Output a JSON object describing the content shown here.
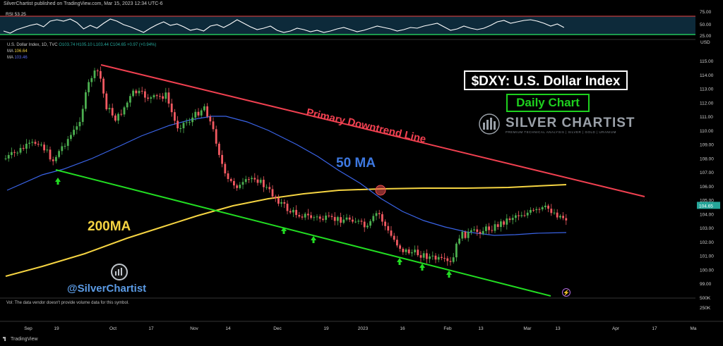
{
  "header": {
    "published_line": "SilverChartist published on TradingView.com, Mar 15, 2023 12:34 UTC-6"
  },
  "rsi": {
    "label": "RSI",
    "value": "53.25",
    "ticks": [
      "75.00",
      "50.00",
      "25.00"
    ],
    "line_color": "#ef4444",
    "baseline_color": "#22c55e"
  },
  "legend": {
    "symbol_line": "U.S. Dollar Index, 1D, TVC",
    "ohlc": "O103.74  H105.10  L103.44  C104.65  +0.97 (+0.94%)",
    "ma1_label": "MA",
    "ma1_value": "106.64",
    "ma2_label": "MA",
    "ma2_value": "103.46"
  },
  "volume_note": "Vol: The data vendor doesn't provide volume data for this symbol.",
  "volume_ticks": [
    "500K",
    "250K"
  ],
  "currency": "USD",
  "price_axis": [
    "115.00",
    "114.00",
    "113.00",
    "112.00",
    "111.00",
    "110.00",
    "109.00",
    "108.00",
    "107.00",
    "106.00",
    "105.00",
    "104.00",
    "103.00",
    "102.00",
    "101.00",
    "100.00",
    "99.00"
  ],
  "last_price": "104.65",
  "date_axis": [
    "Sep",
    "19",
    "Oct",
    "17",
    "Nov",
    "14",
    "Dec",
    "19",
    "2023",
    "16",
    "Feb",
    "13",
    "Mar",
    "13",
    "Apr",
    "17",
    "Ma"
  ],
  "title": "$DXY: U.S. Dollar Index",
  "subtitle": "Daily Chart",
  "logo": {
    "brand": "SILVER CHARTIST",
    "tagline": "PREMIUM TECHNICAL ANALYSIS | SILVER | GOLD | URANIUM"
  },
  "handle": "@SilverChartist",
  "annotations": {
    "downtrend": "Primary Downtrend Line",
    "ma50": "50 MA",
    "ma200": "200MA"
  },
  "footer": "TradingView",
  "colors": {
    "up": "#26a69a",
    "down": "#ef5350",
    "candle_up": "#4caf50",
    "candle_down": "#f25961",
    "ma50": "#3a64e8",
    "ma200": "#f5d442",
    "downtrend": "#f04050",
    "support": "#22dd22",
    "arrow": "#22dd22"
  },
  "chart_data": {
    "type": "line",
    "title": "$DXY: U.S. Dollar Index",
    "xlabel": "",
    "ylabel": "USD",
    "ylim": [
      99.3,
      115.8
    ],
    "x": [
      "Sep 1",
      "Sep 19",
      "Oct 3",
      "Oct 17",
      "Nov 1",
      "Nov 14",
      "Dec 1",
      "Dec 19",
      "Jan 3",
      "Jan 16",
      "Feb 1",
      "Feb 13",
      "Mar 1",
      "Mar 15"
    ],
    "series": [
      {
        "name": "MA",
        "values": [
          104.3,
          105.8,
          107.0,
          108.1,
          108.9,
          109.1,
          108.6,
          108.1,
          107.5,
          106.8,
          106.4,
          106.5,
          106.62,
          106.64
        ]
      },
      {
        "name": "MA",
        "values": [
          108.3,
          109.3,
          110.4,
          110.9,
          111.5,
          111.6,
          109.6,
          107.2,
          105.8,
          104.2,
          103.6,
          103.5,
          103.45,
          103.46
        ]
      },
      {
        "name": "U.S. Dollar Index",
        "values": [
          108.4,
          109.7,
          111.8,
          112.3,
          111.2,
          106.9,
          105.1,
          104.0,
          104.2,
          102.2,
          101.2,
          103.4,
          104.7,
          104.65
        ]
      }
    ]
  }
}
